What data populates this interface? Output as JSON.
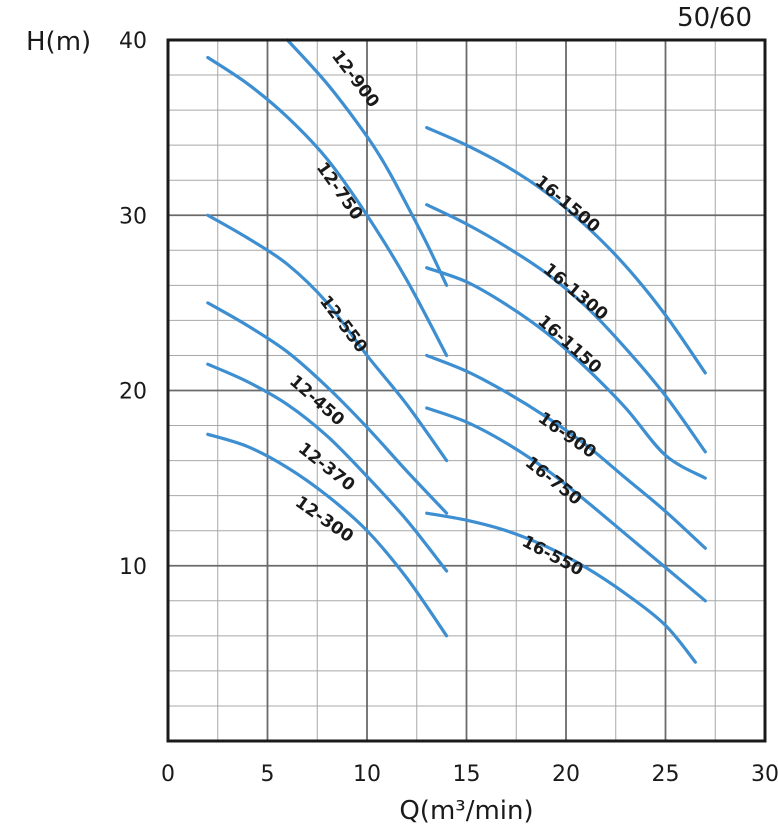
{
  "chart_data": {
    "type": "line",
    "title": "50/60",
    "xlabel": "Q(m³/min)",
    "ylabel": "H(m)",
    "xlim": [
      0,
      30
    ],
    "ylim": [
      0,
      40
    ],
    "x_ticks": [
      0,
      5,
      10,
      15,
      20,
      25,
      30
    ],
    "y_ticks": [
      10,
      20,
      30,
      40
    ],
    "grid": true,
    "line_color": "#3d8fd1",
    "series": [
      {
        "name": "12-900",
        "x": [
          6,
          8,
          10,
          11,
          12,
          13,
          14
        ],
        "y": [
          40,
          37.5,
          34.5,
          32.7,
          30.6,
          28.4,
          26
        ]
      },
      {
        "name": "12-750",
        "x": [
          2,
          4,
          6,
          8,
          10,
          12,
          14
        ],
        "y": [
          39,
          37.5,
          35.6,
          33.2,
          30,
          26.3,
          22
        ]
      },
      {
        "name": "12-550",
        "x": [
          2,
          4,
          6,
          8,
          10,
          12,
          14
        ],
        "y": [
          30,
          28.7,
          27.2,
          25,
          22,
          19.2,
          16
        ]
      },
      {
        "name": "12-450",
        "x": [
          2,
          4,
          6,
          8,
          10,
          12,
          14
        ],
        "y": [
          25,
          23.7,
          22.2,
          20.2,
          17.9,
          15.4,
          13
        ]
      },
      {
        "name": "12-370",
        "x": [
          2,
          4,
          6,
          8,
          10,
          12,
          14
        ],
        "y": [
          21.5,
          20.5,
          19.2,
          17.4,
          15.1,
          12.6,
          9.7
        ]
      },
      {
        "name": "12-300",
        "x": [
          2,
          4,
          6,
          8,
          10,
          12,
          14
        ],
        "y": [
          17.5,
          16.8,
          15.6,
          14,
          12,
          9.3,
          6
        ]
      },
      {
        "name": "16-1500",
        "x": [
          13,
          15,
          17,
          19,
          21,
          23,
          25,
          27
        ],
        "y": [
          35,
          34,
          32.8,
          31.3,
          29.4,
          27.1,
          24.3,
          21
        ]
      },
      {
        "name": "16-1300",
        "x": [
          13,
          15,
          17,
          19,
          21,
          23,
          25,
          27
        ],
        "y": [
          30.6,
          29.5,
          28.2,
          26.7,
          24.8,
          22.4,
          19.7,
          16.5
        ]
      },
      {
        "name": "16-1150",
        "x": [
          13,
          15,
          17,
          19,
          21,
          23,
          25,
          27
        ],
        "y": [
          27,
          26.2,
          24.9,
          23.3,
          21.3,
          19,
          16.3,
          15
        ]
      },
      {
        "name": "16-900",
        "x": [
          13,
          15,
          17,
          19,
          21,
          23,
          25,
          27
        ],
        "y": [
          22,
          21.1,
          19.9,
          18.5,
          16.9,
          15,
          13.1,
          11
        ]
      },
      {
        "name": "16-750",
        "x": [
          13,
          15,
          17,
          19,
          21,
          23,
          25,
          27
        ],
        "y": [
          19,
          18.2,
          17,
          15.5,
          13.7,
          11.8,
          9.9,
          8
        ]
      },
      {
        "name": "16-550",
        "x": [
          13,
          15,
          17,
          19,
          21,
          23,
          25,
          26.5
        ],
        "y": [
          13,
          12.6,
          12,
          11.1,
          9.9,
          8.4,
          6.6,
          4.5
        ]
      }
    ]
  }
}
